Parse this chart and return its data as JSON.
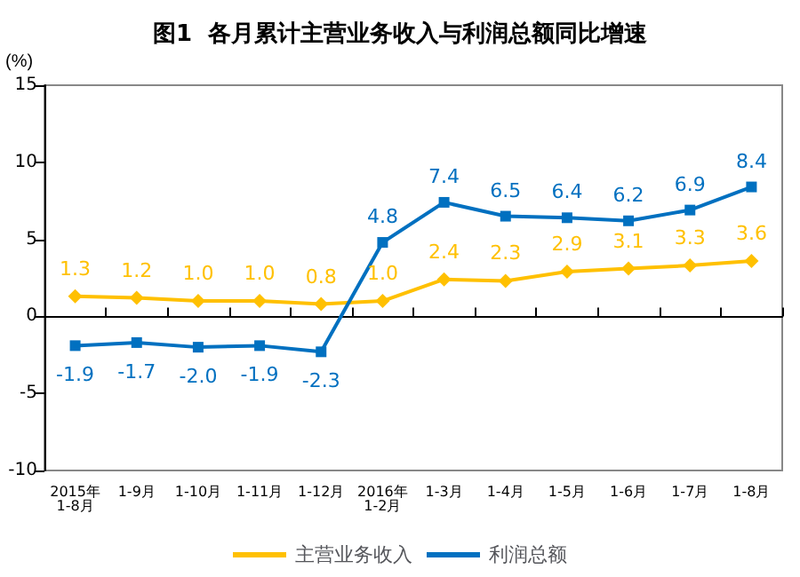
{
  "chart_data": {
    "type": "line",
    "title": "图1  各月累计主营业务收入与利润总额同比增速",
    "ylabel": "(%)",
    "categories": [
      "2015年\n1-8月",
      "1-9月",
      "1-10月",
      "1-11月",
      "1-12月",
      "2016年\n1-2月",
      "1-3月",
      "1-4月",
      "1-5月",
      "1-6月",
      "1-7月",
      "1-8月"
    ],
    "series": [
      {
        "name": "主营业务收入",
        "color": "#ffc000",
        "marker": "diamond",
        "values": [
          1.3,
          1.2,
          1.0,
          1.0,
          0.8,
          1.0,
          2.4,
          2.3,
          2.9,
          3.1,
          3.3,
          3.6
        ],
        "value_labels": [
          "1.3",
          "1.2",
          "1.0",
          "1.0",
          "0.8",
          "1.0",
          "2.4",
          "2.3",
          "2.9",
          "3.1",
          "3.3",
          "3.6"
        ]
      },
      {
        "name": "利润总额",
        "color": "#0070c0",
        "marker": "square",
        "values": [
          -1.9,
          -1.7,
          -2.0,
          -1.9,
          -2.3,
          4.8,
          7.4,
          6.5,
          6.4,
          6.2,
          6.9,
          8.4
        ],
        "value_labels": [
          "-1.9",
          "-1.7",
          "-2.0",
          "-1.9",
          "-2.3",
          "4.8",
          "7.4",
          "6.5",
          "6.4",
          "6.2",
          "6.9",
          "8.4"
        ]
      }
    ],
    "ylim": [
      -10,
      15
    ],
    "yticks": [
      -10,
      -5,
      0,
      5,
      10,
      15
    ],
    "legend": "bottom"
  }
}
